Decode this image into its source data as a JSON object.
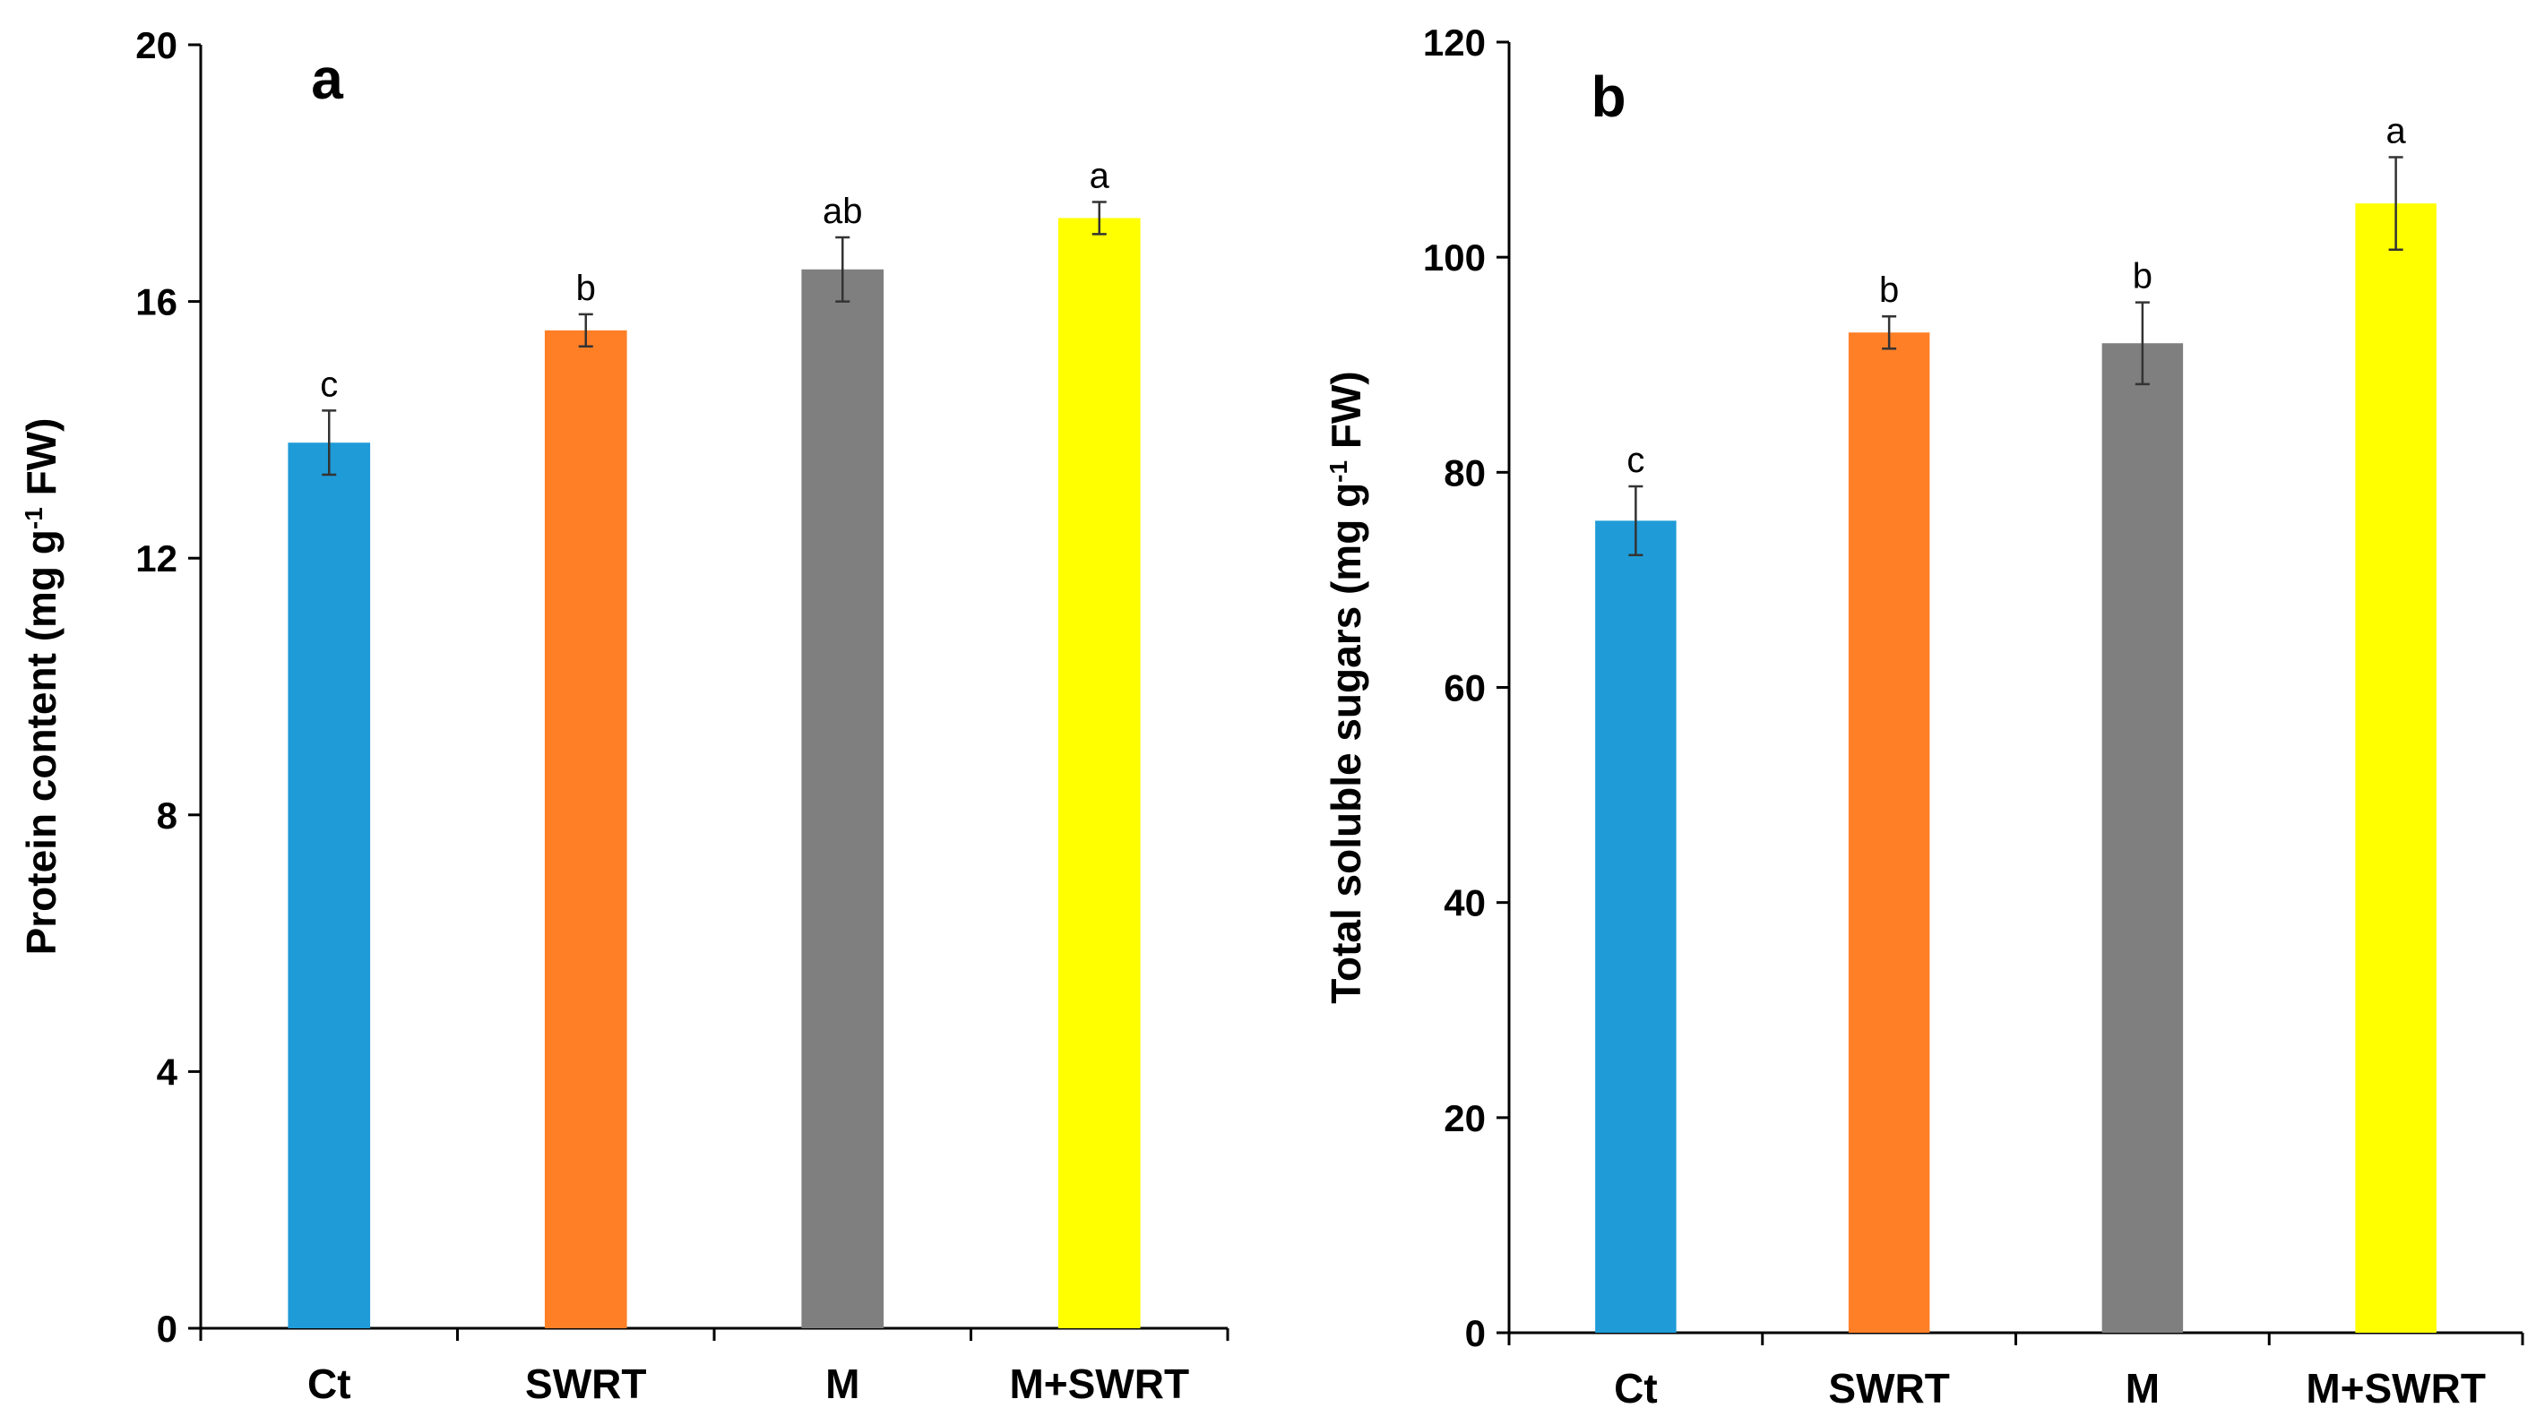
{
  "chart_data": [
    {
      "type": "bar",
      "panel_label": "a",
      "categories": [
        "Ct",
        "SWRT",
        "M",
        "M+SWRT"
      ],
      "values": [
        13.8,
        15.55,
        16.5,
        17.3
      ],
      "errors": [
        0.5,
        0.25,
        0.5,
        0.25
      ],
      "significance": [
        "c",
        "b",
        "ab",
        "a"
      ],
      "colors": [
        "#1f9bd7",
        "#ff7f27",
        "#7f7f7f",
        "#ffff00"
      ],
      "ylabel": {
        "main": "Protein content (mg  g",
        "sup": "-1",
        "rest": " FW)"
      },
      "ylim": [
        0,
        20
      ],
      "yticks": [
        "0",
        "4",
        "8",
        "12",
        "16",
        "20"
      ],
      "grid": false,
      "legend": "none"
    },
    {
      "type": "bar",
      "panel_label": "b",
      "categories": [
        "Ct",
        "SWRT",
        "M",
        "M+SWRT"
      ],
      "values": [
        75.5,
        93,
        92,
        105
      ],
      "errors": [
        3.2,
        1.5,
        3.8,
        4.3
      ],
      "significance": [
        "c",
        "b",
        "b",
        "a"
      ],
      "colors": [
        "#1f9bd7",
        "#ff7f27",
        "#7f7f7f",
        "#ffff00"
      ],
      "ylabel": {
        "main": "Total soluble sugars (mg g",
        "sup": "-1",
        "rest": " FW)"
      },
      "ylim": [
        0,
        120
      ],
      "yticks": [
        "0",
        "20",
        "40",
        "60",
        "80",
        "100",
        "120"
      ],
      "grid": false,
      "legend": "none"
    }
  ]
}
